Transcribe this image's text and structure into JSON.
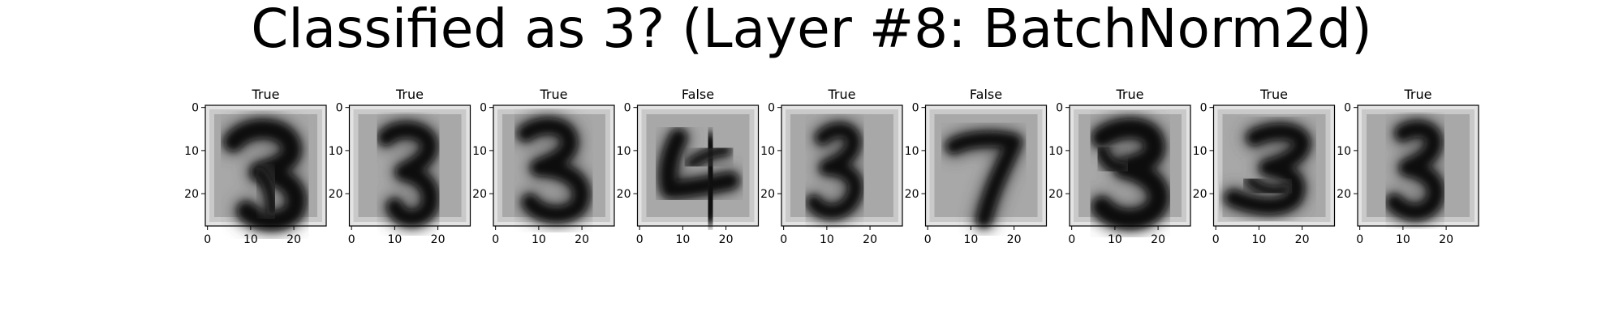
{
  "title": "Classified as 3? (Layer #8: BatchNorm2d)",
  "chart_data": {
    "type": "heatmap",
    "title": "Classified as 3? (Layer #8: BatchNorm2d)",
    "colormap": "gray",
    "image_size": [
      28,
      28
    ],
    "x_ticks": [
      0,
      10,
      20
    ],
    "y_ticks": [
      0,
      10,
      20
    ],
    "xlim": [
      -0.5,
      27.5
    ],
    "ylim": [
      27.5,
      -0.5
    ],
    "panels": [
      {
        "title": "True",
        "digit": "3a"
      },
      {
        "title": "True",
        "digit": "3b"
      },
      {
        "title": "True",
        "digit": "3c"
      },
      {
        "title": "False",
        "digit": "4"
      },
      {
        "title": "True",
        "digit": "3d"
      },
      {
        "title": "False",
        "digit": "7"
      },
      {
        "title": "True",
        "digit": "3e"
      },
      {
        "title": "True",
        "digit": "3f"
      },
      {
        "title": "True",
        "digit": "3g"
      }
    ]
  }
}
